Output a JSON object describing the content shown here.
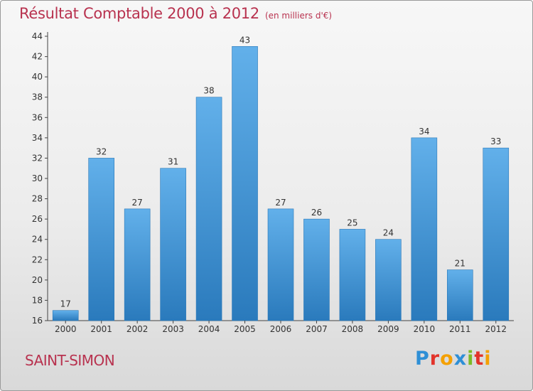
{
  "header": {
    "title": "Résultat Comptable 2000 à 2012",
    "subtitle": "(en milliers d'€)"
  },
  "footer": {
    "location": "SAINT-SIMON",
    "brand": "Proxiti",
    "brand_colors": [
      "#2e8fd6",
      "#e2332a",
      "#f4a000",
      "#2e8fd6",
      "#7cbb27",
      "#e2332a",
      "#f4a000"
    ]
  },
  "colors": {
    "title": "#b8324f",
    "bar_top": "#62b0ea",
    "bar_bottom": "#2a7abc",
    "axis": "#444444",
    "grid": "#cccccc"
  },
  "chart_data": {
    "type": "bar",
    "title": "Résultat Comptable 2000 à 2012",
    "xlabel": "",
    "ylabel": "(en milliers d'€)",
    "categories": [
      "2000",
      "2001",
      "2002",
      "2003",
      "2004",
      "2005",
      "2006",
      "2007",
      "2008",
      "2009",
      "2010",
      "2011",
      "2012"
    ],
    "values": [
      17,
      32,
      27,
      31,
      38,
      43,
      27,
      26,
      25,
      24,
      34,
      21,
      33
    ],
    "ylim": [
      16,
      44
    ],
    "yticks": [
      16,
      18,
      20,
      22,
      24,
      26,
      28,
      30,
      32,
      34,
      36,
      38,
      40,
      42,
      44
    ],
    "data_labels": true,
    "grid": false
  }
}
